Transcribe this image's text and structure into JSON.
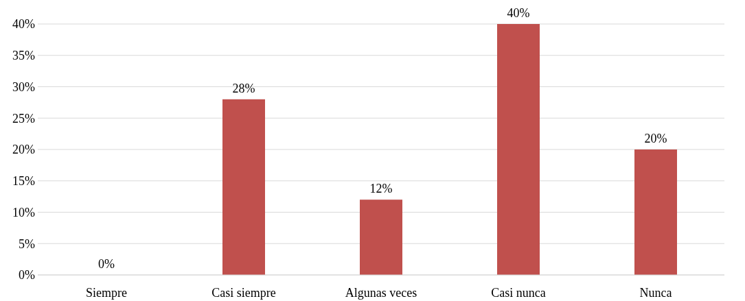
{
  "chart_data": {
    "type": "bar",
    "categories": [
      "Siempre",
      "Casi siempre",
      "Algunas veces",
      "Casi nunca",
      "Nunca"
    ],
    "values": [
      0,
      28,
      12,
      40,
      20
    ],
    "value_labels": [
      "0%",
      "28%",
      "12%",
      "40%",
      "20%"
    ],
    "color": "#c0504d",
    "ylim": [
      0,
      40
    ],
    "yticks": [
      {
        "value": 0,
        "label": "0%"
      },
      {
        "value": 5,
        "label": "5%"
      },
      {
        "value": 10,
        "label": "10%"
      },
      {
        "value": 15,
        "label": "15%"
      },
      {
        "value": 20,
        "label": "20%"
      },
      {
        "value": 25,
        "label": "25%"
      },
      {
        "value": 30,
        "label": "30%"
      },
      {
        "value": 35,
        "label": "35%"
      },
      {
        "value": 40,
        "label": "40%"
      }
    ],
    "grid": "y"
  }
}
